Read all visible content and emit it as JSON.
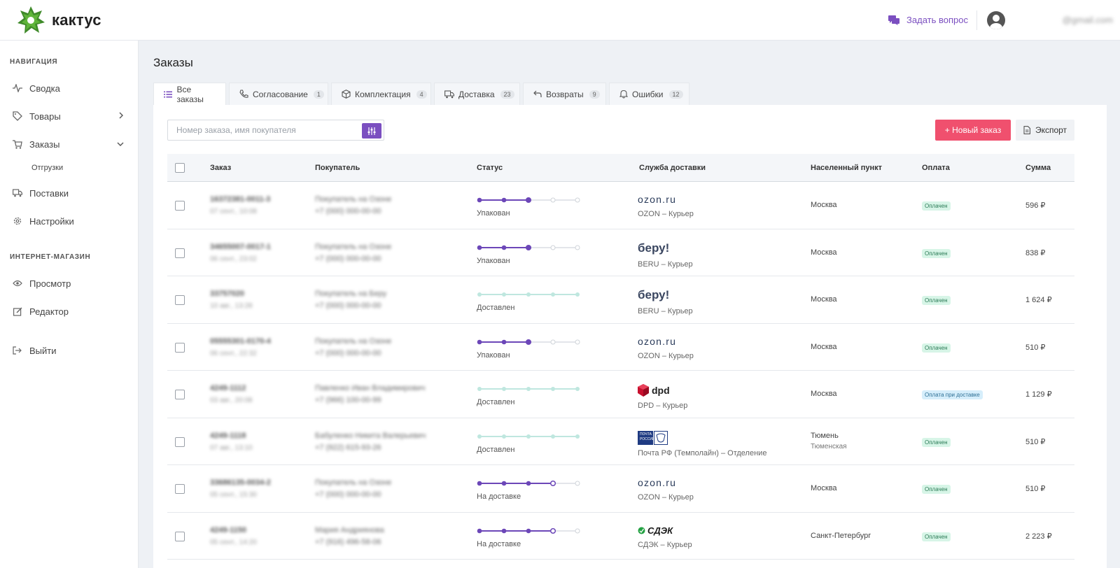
{
  "header": {
    "logo_text": "кактус",
    "ask_label": "Задать вопрос",
    "user_email": "@gmail.com"
  },
  "sidebar": {
    "section_nav": "НАВИГАЦИЯ",
    "items": [
      {
        "label": "Сводка",
        "icon": "activity-icon"
      },
      {
        "label": "Товары",
        "icon": "tag-icon"
      },
      {
        "label": "Заказы",
        "icon": "cart-icon"
      },
      {
        "label": "Отгрузки"
      },
      {
        "label": "Поставки",
        "icon": "truck-icon"
      },
      {
        "label": "Настройки",
        "icon": "gear-icon"
      }
    ],
    "section_shop": "ИНТЕРНЕТ-МАГАЗИН",
    "shop_items": [
      {
        "label": "Просмотр",
        "icon": "eye-icon"
      },
      {
        "label": "Редактор",
        "icon": "edit-icon"
      }
    ],
    "logout": "Выйти"
  },
  "main": {
    "title": "Заказы",
    "tabs": [
      {
        "label": "Все заказы",
        "count": ""
      },
      {
        "label": "Согласование",
        "count": "1"
      },
      {
        "label": "Комплектация",
        "count": "4"
      },
      {
        "label": "Доставка",
        "count": "23"
      },
      {
        "label": "Возвраты",
        "count": "9"
      },
      {
        "label": "Ошибки",
        "count": "12"
      }
    ],
    "search_placeholder": "Номер заказа, имя покупателя",
    "new_order_label": "+ Новый заказ",
    "export_label": "Экспорт",
    "columns": [
      "Заказ",
      "Покупатель",
      "Статус",
      "Служба доставки",
      "Населенный пункт",
      "Оплата",
      "Сумма"
    ],
    "colors": {
      "accent": "#7b4fc0",
      "danger": "#f0506e",
      "delivered": "#bfe7df",
      "active_step": "#6c47b8"
    }
  },
  "rows": [
    {
      "order": "16372381-0011-3",
      "date": "07 сент., 10:08",
      "buyer": "Покупатель на Озоне",
      "phone": "+7 (000) 000-00-00",
      "status": "Упакован",
      "progress": 3,
      "done": false,
      "ship_logo": "ozon.ru",
      "ship_type": "ozon",
      "ship": "OZON – Курьер",
      "city": "Москва",
      "region": "",
      "pay": "Оплачен",
      "pay_type": "green",
      "sum": "596 ₽"
    },
    {
      "order": "34655007-0017-1",
      "date": "06 сент., 23:02",
      "buyer": "Покупатель на Озоне",
      "phone": "+7 (000) 000-00-00",
      "status": "Упакован",
      "progress": 3,
      "done": false,
      "ship_logo": "беру!",
      "ship_type": "beru",
      "ship": "BERU – Курьер",
      "city": "Москва",
      "region": "",
      "pay": "Оплачен",
      "pay_type": "green",
      "sum": "838 ₽"
    },
    {
      "order": "33757020",
      "date": "10 авг., 13:28",
      "buyer": "Покупатель на Беру",
      "phone": "+7 (000) 000-00-00",
      "status": "Доставлен",
      "progress": 5,
      "done": true,
      "ship_logo": "беру!",
      "ship_type": "beru",
      "ship": "BERU – Курьер",
      "city": "Москва",
      "region": "",
      "pay": "Оплачен",
      "pay_type": "green",
      "sum": "1 624 ₽"
    },
    {
      "order": "05555301-0170-4",
      "date": "06 сент., 22:32",
      "buyer": "Покупатель на Озоне",
      "phone": "+7 (000) 000-00-00",
      "status": "Упакован",
      "progress": 3,
      "done": false,
      "ship_logo": "ozon.ru",
      "ship_type": "ozon",
      "ship": "OZON – Курьер",
      "city": "Москва",
      "region": "",
      "pay": "Оплачен",
      "pay_type": "green",
      "sum": "510 ₽"
    },
    {
      "order": "4249-1112",
      "date": "03 авг., 20:08",
      "buyer": "Павленко Иван Владимирович",
      "phone": "+7 (966) 100-00-99",
      "status": "Доставлен",
      "progress": 5,
      "done": true,
      "ship_logo": "dpd",
      "ship_type": "dpd",
      "ship": "DPD – Курьер",
      "city": "Москва",
      "region": "",
      "pay": "Оплата при доставке",
      "pay_type": "blue",
      "sum": "1 129 ₽"
    },
    {
      "order": "4249-1118",
      "date": "07 авг., 13:10",
      "buyer": "Бабуленко Никита Валерьевич",
      "phone": "+7 (922) 615-93-26",
      "status": "Доставлен",
      "progress": 5,
      "done": true,
      "ship_logo": "ПОЧТА РОССИИ",
      "ship_type": "pochta",
      "ship": "Почта РФ (Темполайн) – Отделение",
      "city": "Тюмень",
      "region": "Тюменская",
      "pay": "Оплачен",
      "pay_type": "green",
      "sum": "510 ₽"
    },
    {
      "order": "33686135-0034-2",
      "date": "05 сент., 15:30",
      "buyer": "Покупатель на Озоне",
      "phone": "+7 (000) 000-00-00",
      "status": "На доставке",
      "progress": 4,
      "done": false,
      "ship_logo": "ozon.ru",
      "ship_type": "ozon",
      "ship": "OZON – Курьер",
      "city": "Москва",
      "region": "",
      "pay": "Оплачен",
      "pay_type": "green",
      "sum": "510 ₽"
    },
    {
      "order": "4249-1150",
      "date": "05 сент., 14:20",
      "buyer": "Мария Андриянова",
      "phone": "+7 (916) 496-58-06",
      "status": "На доставке",
      "progress": 4,
      "done": false,
      "ship_logo": "СДЭК",
      "ship_type": "cdek",
      "ship": "СДЭК – Курьер",
      "city": "Санкт-Петербург",
      "region": "",
      "pay": "Оплачен",
      "pay_type": "green",
      "sum": "2 223 ₽"
    }
  ]
}
